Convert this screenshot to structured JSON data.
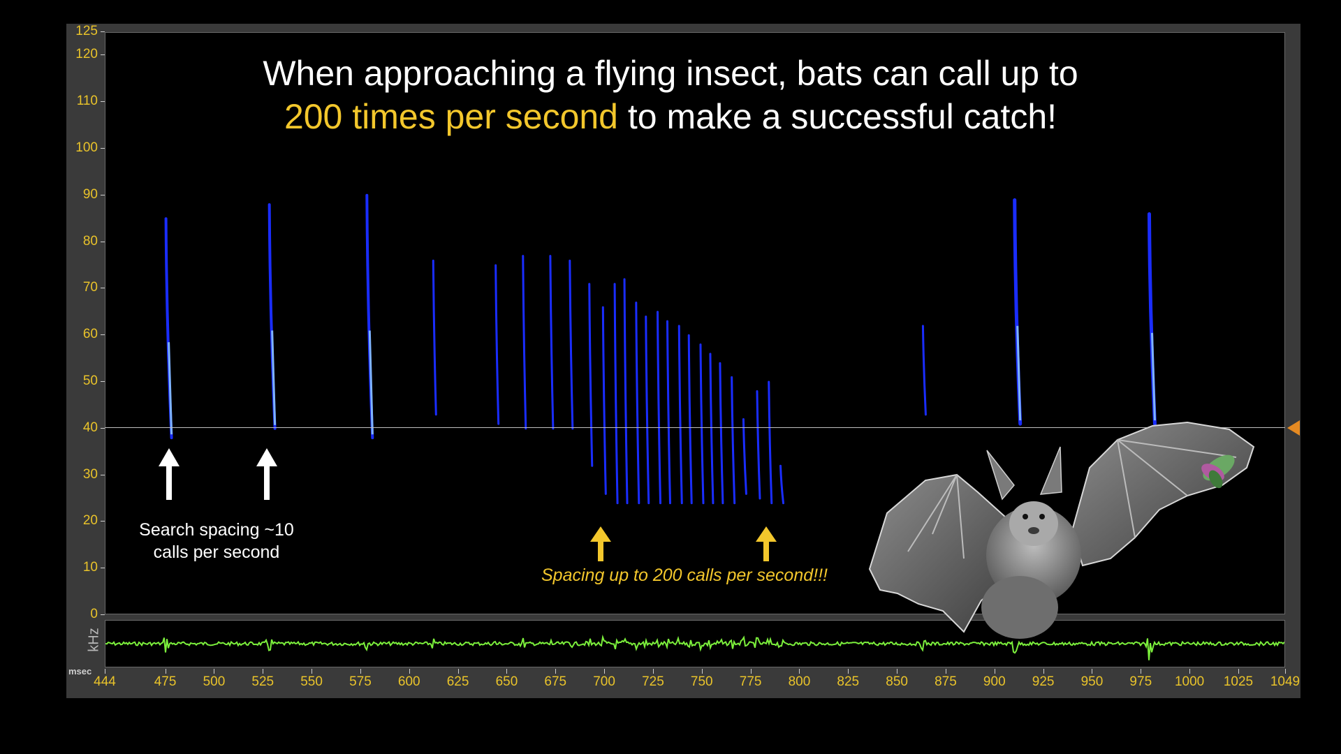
{
  "title": {
    "line1": "When approaching a flying insect, bats can call up to",
    "highlight": "200 times per second",
    "line2_rest": " to make a successful catch!"
  },
  "annotations": {
    "search_line1": "Search spacing ~10",
    "search_line2": "calls per second",
    "buzz": "Spacing up to 200 calls per second!!!"
  },
  "axes": {
    "y_unit": "kHz",
    "x_unit": "msec",
    "y_ticks": [
      "0",
      "10",
      "20",
      "30",
      "40",
      "50",
      "60",
      "70",
      "80",
      "90",
      "100",
      "110",
      "120",
      "125"
    ],
    "x_ticks": [
      "444",
      "475",
      "500",
      "525",
      "550",
      "575",
      "600",
      "625",
      "650",
      "675",
      "700",
      "725",
      "750",
      "775",
      "800",
      "825",
      "850",
      "875",
      "900",
      "925",
      "950",
      "975",
      "1000",
      "1025",
      "1049"
    ]
  },
  "threshold_khz": 40,
  "colors": {
    "tick_labels": "#e9c32a",
    "highlight": "#f3c72c",
    "waveform": "#7cf03c",
    "calls": "#1a2dff"
  },
  "calls": [
    {
      "t": 475,
      "hi": 85,
      "lo": 38,
      "w": 4
    },
    {
      "t": 528,
      "hi": 88,
      "lo": 40,
      "w": 4
    },
    {
      "t": 578,
      "hi": 90,
      "lo": 38,
      "w": 4
    },
    {
      "t": 612,
      "hi": 76,
      "lo": 43,
      "w": 3
    },
    {
      "t": 644,
      "hi": 75,
      "lo": 41,
      "w": 3
    },
    {
      "t": 658,
      "hi": 77,
      "lo": 40,
      "w": 3
    },
    {
      "t": 672,
      "hi": 77,
      "lo": 40,
      "w": 3
    },
    {
      "t": 682,
      "hi": 76,
      "lo": 40,
      "w": 3
    },
    {
      "t": 692,
      "hi": 71,
      "lo": 32,
      "w": 3
    },
    {
      "t": 699,
      "hi": 66,
      "lo": 26,
      "w": 3
    },
    {
      "t": 705,
      "hi": 71,
      "lo": 24,
      "w": 3
    },
    {
      "t": 710,
      "hi": 72,
      "lo": 24,
      "w": 3
    },
    {
      "t": 716,
      "hi": 67,
      "lo": 24,
      "w": 3
    },
    {
      "t": 721,
      "hi": 64,
      "lo": 24,
      "w": 3
    },
    {
      "t": 727,
      "hi": 65,
      "lo": 24,
      "w": 3
    },
    {
      "t": 732,
      "hi": 63,
      "lo": 24,
      "w": 3
    },
    {
      "t": 738,
      "hi": 62,
      "lo": 24,
      "w": 3
    },
    {
      "t": 743,
      "hi": 60,
      "lo": 24,
      "w": 3
    },
    {
      "t": 749,
      "hi": 58,
      "lo": 24,
      "w": 3
    },
    {
      "t": 754,
      "hi": 56,
      "lo": 24,
      "w": 3
    },
    {
      "t": 759,
      "hi": 54,
      "lo": 24,
      "w": 3
    },
    {
      "t": 765,
      "hi": 51,
      "lo": 24,
      "w": 3
    },
    {
      "t": 771,
      "hi": 42,
      "lo": 26,
      "w": 3
    },
    {
      "t": 778,
      "hi": 48,
      "lo": 25,
      "w": 3
    },
    {
      "t": 784,
      "hi": 50,
      "lo": 24,
      "w": 3
    },
    {
      "t": 790,
      "hi": 32,
      "lo": 24,
      "w": 3
    },
    {
      "t": 863,
      "hi": 62,
      "lo": 43,
      "w": 3
    },
    {
      "t": 910,
      "hi": 89,
      "lo": 41,
      "w": 5
    },
    {
      "t": 979,
      "hi": 86,
      "lo": 41,
      "w": 5
    }
  ],
  "arrows": [
    {
      "type": "white",
      "t": 477
    },
    {
      "type": "white",
      "t": 527
    },
    {
      "type": "yellow",
      "t": 698
    },
    {
      "type": "yellow",
      "t": 783
    }
  ]
}
